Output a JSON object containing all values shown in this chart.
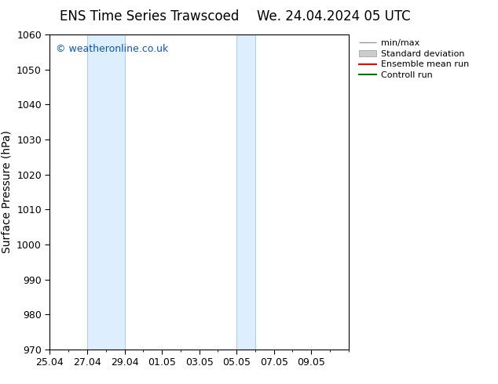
{
  "title_left": "ENS Time Series Trawscoed",
  "title_right": "We. 24.04.2024 05 UTC",
  "ylabel": "Surface Pressure (hPa)",
  "ylim": [
    970,
    1060
  ],
  "yticks": [
    970,
    980,
    990,
    1000,
    1010,
    1020,
    1030,
    1040,
    1050,
    1060
  ],
  "xlim": [
    0,
    16
  ],
  "xtick_labels": [
    "25.04",
    "27.04",
    "29.04",
    "01.05",
    "03.05",
    "05.05",
    "07.05",
    "09.05"
  ],
  "xtick_positions": [
    0,
    2,
    4,
    6,
    8,
    10,
    12,
    14
  ],
  "shaded_regions": [
    {
      "xstart": 2,
      "xend": 4
    },
    {
      "xstart": 10,
      "xend": 11
    }
  ],
  "shaded_color": "#ddeeff",
  "shaded_edge_color": "#b0ccee",
  "watermark_text": "© weatheronline.co.uk",
  "watermark_color": "#1155aa",
  "background_color": "#ffffff",
  "legend_items": [
    {
      "label": "min/max",
      "color": "#999999",
      "lw": 1
    },
    {
      "label": "Standard deviation",
      "color": "#cccccc",
      "lw": 6
    },
    {
      "label": "Ensemble mean run",
      "color": "#ff0000",
      "lw": 1.5
    },
    {
      "label": "Controll run",
      "color": "#007700",
      "lw": 1.5
    }
  ],
  "title_fontsize": 12,
  "axis_fontsize": 10,
  "tick_fontsize": 9,
  "legend_fontsize": 8
}
